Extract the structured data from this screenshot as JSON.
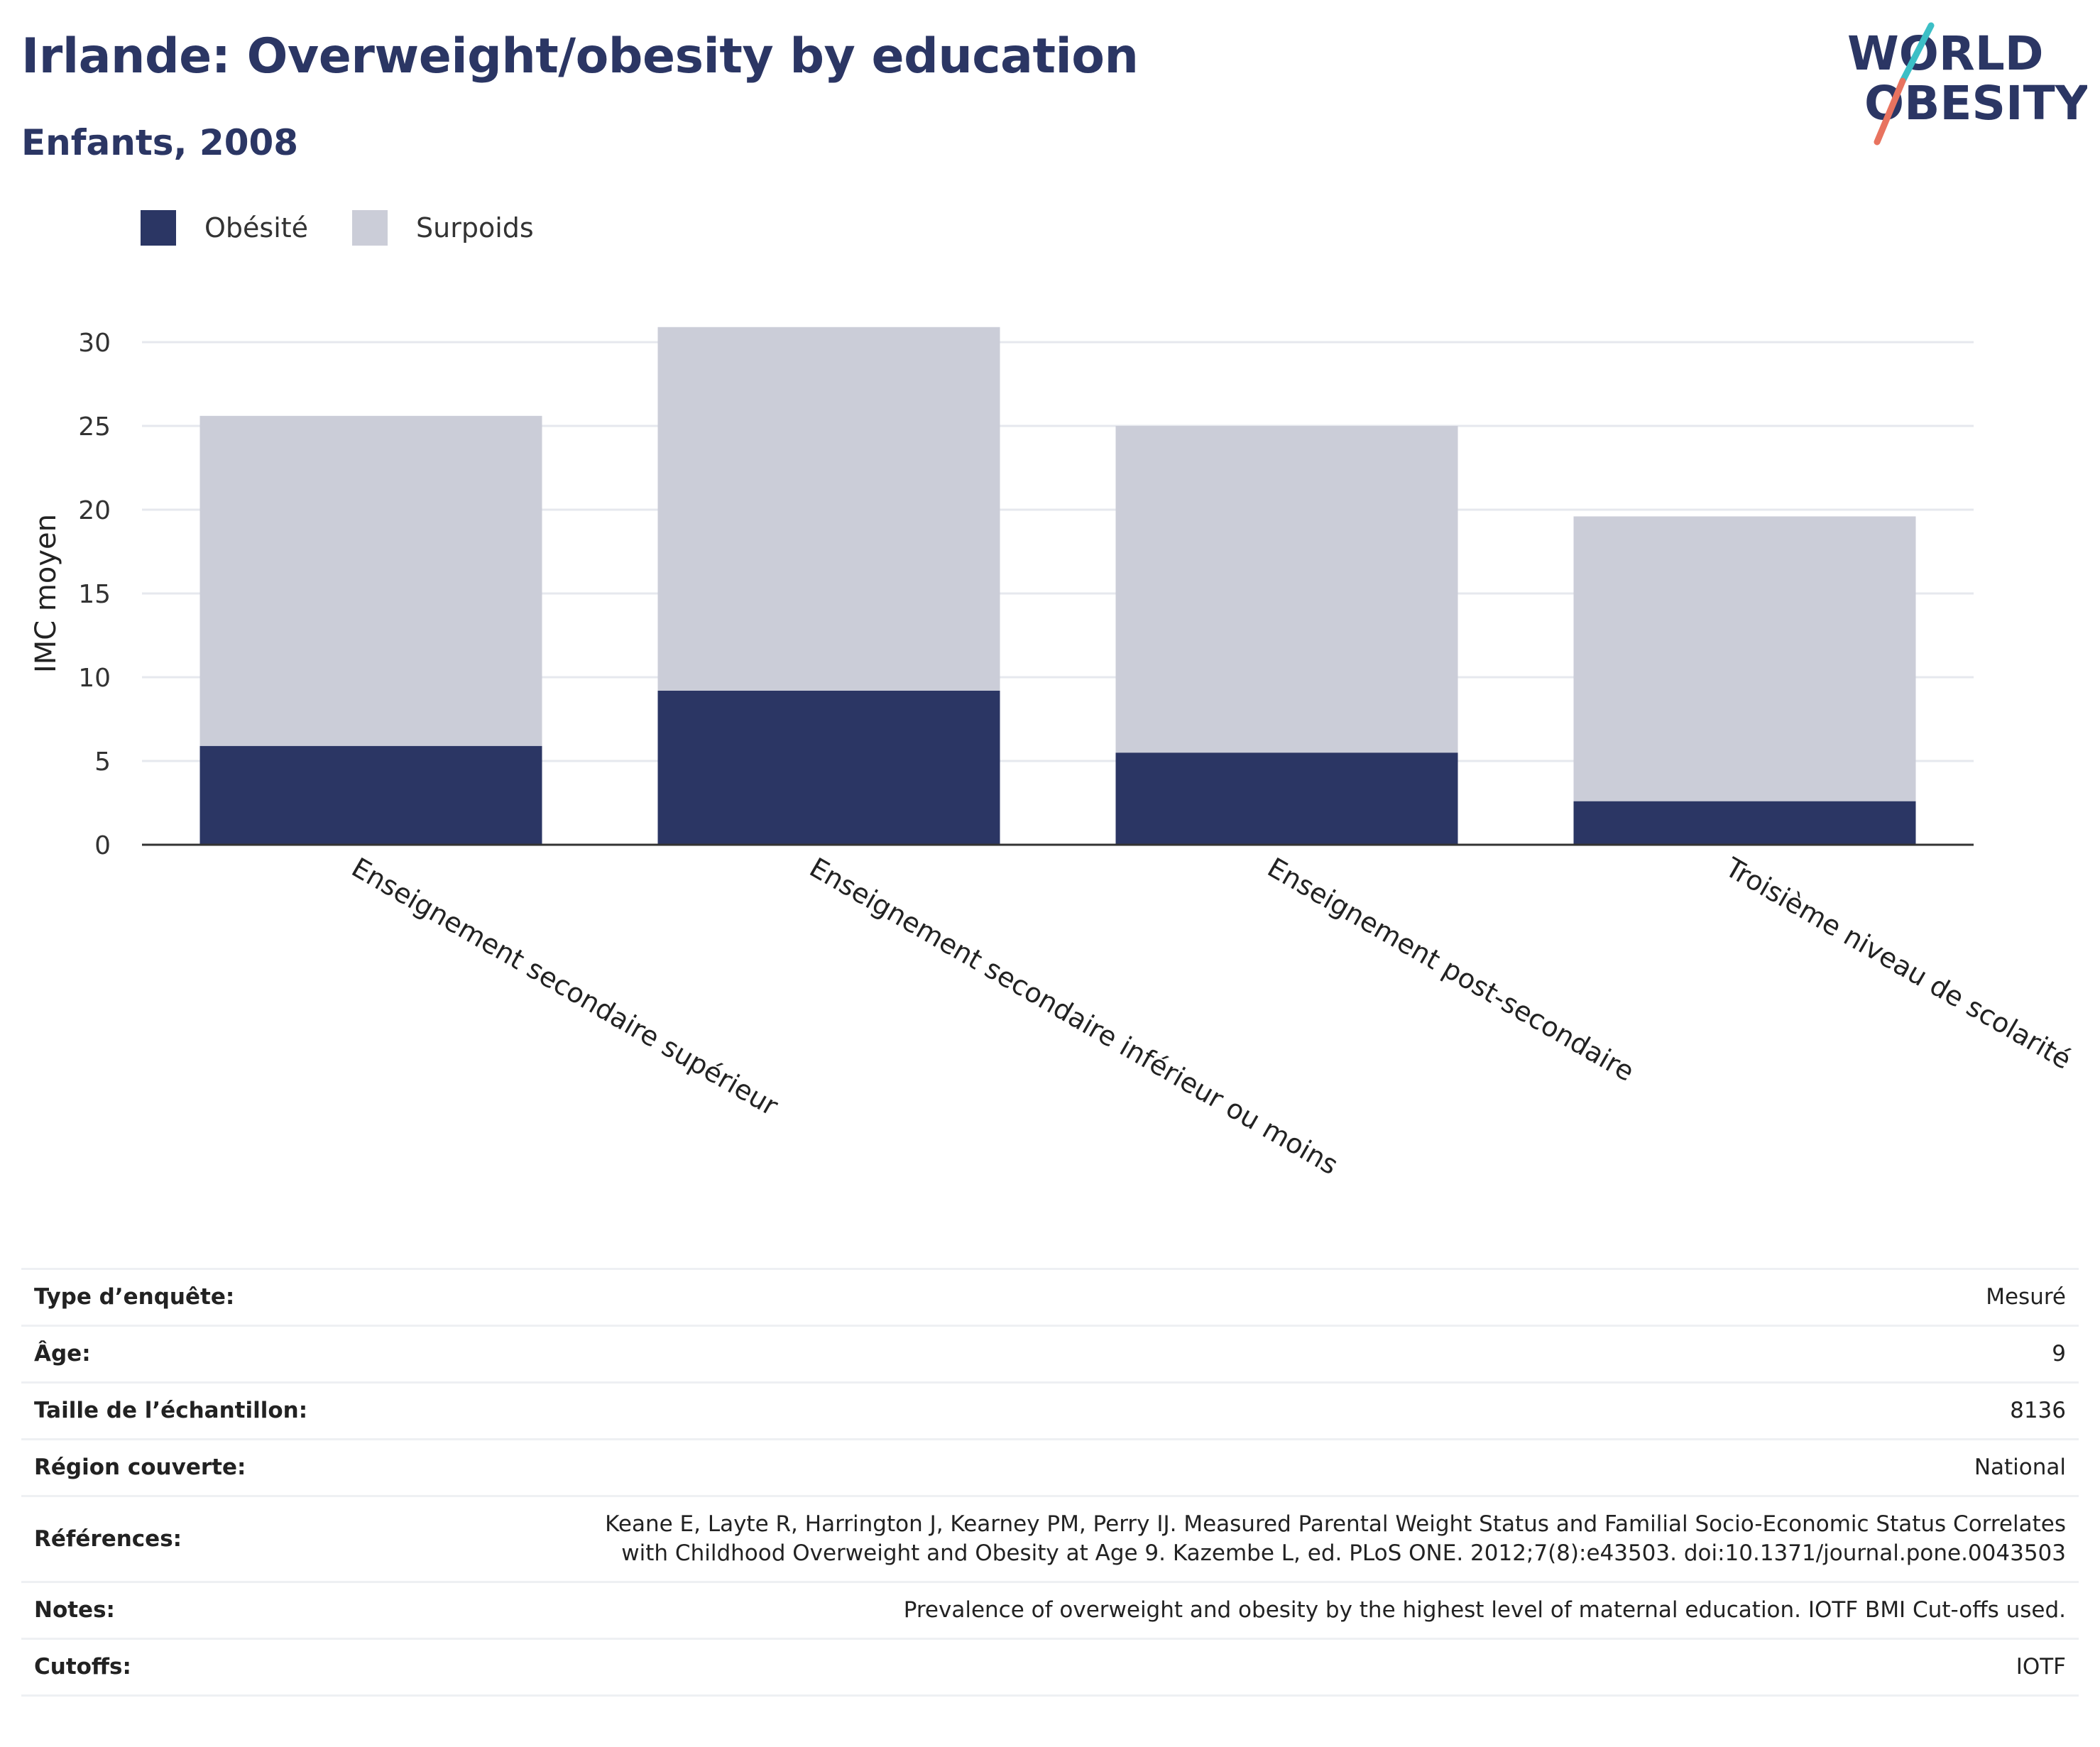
{
  "title": "Irlande: Overweight/obesity by education",
  "subtitle": "Enfants, 2008",
  "logo": {
    "line1": "WORLD",
    "line2": "OBESITY",
    "colors": {
      "text": "#2b3664",
      "slash_top": "#3cbfc6",
      "slash_bottom": "#e8735f"
    }
  },
  "legend": [
    {
      "label": "Obésité",
      "color": "#2b3664"
    },
    {
      "label": "Surpoids",
      "color": "#cbcdd8"
    }
  ],
  "chart_data": {
    "type": "bar",
    "stacked": true,
    "categories": [
      "Enseignement secondaire supérieur",
      "Enseignement secondaire inférieur ou moins",
      "Enseignement post-secondaire",
      "Troisième niveau de scolarité"
    ],
    "series": [
      {
        "name": "Obésité",
        "color": "#2b3664",
        "values": [
          5.9,
          9.2,
          5.5,
          2.6
        ]
      },
      {
        "name": "Surpoids",
        "color": "#cbcdd8",
        "values": [
          19.7,
          21.7,
          19.5,
          17.0
        ]
      }
    ],
    "title": "Irlande: Overweight/obesity by education",
    "subtitle": "Enfants, 2008",
    "xlabel": "",
    "ylabel": "IMC moyen",
    "ylim": [
      0,
      30
    ],
    "yticks": [
      0,
      5,
      10,
      15,
      20,
      25,
      30
    ],
    "grid": true,
    "legend_position": "top-left"
  },
  "info": [
    {
      "key": "Type d’enquête:",
      "value": "Mesuré"
    },
    {
      "key": "Âge:",
      "value": "9"
    },
    {
      "key": "Taille de l’échantillon:",
      "value": "8136"
    },
    {
      "key": "Région couverte:",
      "value": "National"
    },
    {
      "key": "Références:",
      "value": "Keane E, Layte R, Harrington J, Kearney PM, Perry IJ. Measured Parental Weight Status and Familial Socio-Economic Status Correlates",
      "value2": "with Childhood Overweight and Obesity at Age 9. Kazembe L, ed. PLoS ONE. 2012;7(8):e43503. doi:10.1371/journal.pone.0043503"
    },
    {
      "key": "Notes:",
      "value": "Prevalence of overweight and obesity by the highest level of maternal education. IOTF BMI Cut-offs used."
    },
    {
      "key": "Cutoffs:",
      "value": "IOTF"
    }
  ]
}
